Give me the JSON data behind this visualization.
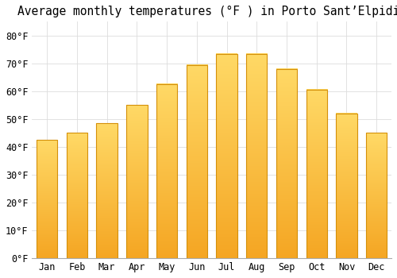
{
  "title": "Average monthly temperatures (°F ) in Porto Sant’Elpidio",
  "months": [
    "Jan",
    "Feb",
    "Mar",
    "Apr",
    "May",
    "Jun",
    "Jul",
    "Aug",
    "Sep",
    "Oct",
    "Nov",
    "Dec"
  ],
  "values": [
    42.5,
    45.0,
    48.5,
    55.0,
    62.5,
    69.5,
    73.5,
    73.5,
    68.0,
    60.5,
    52.0,
    45.0
  ],
  "bar_color_bottom": "#F5A623",
  "bar_color_top": "#FFD966",
  "bar_edge_color": "#D4900A",
  "background_color": "#FFFFFF",
  "grid_color": "#DDDDDD",
  "ylim": [
    0,
    85
  ],
  "yticks": [
    0,
    10,
    20,
    30,
    40,
    50,
    60,
    70,
    80
  ],
  "title_fontsize": 10.5,
  "tick_fontsize": 8.5,
  "font_family": "monospace",
  "bar_width": 0.7
}
